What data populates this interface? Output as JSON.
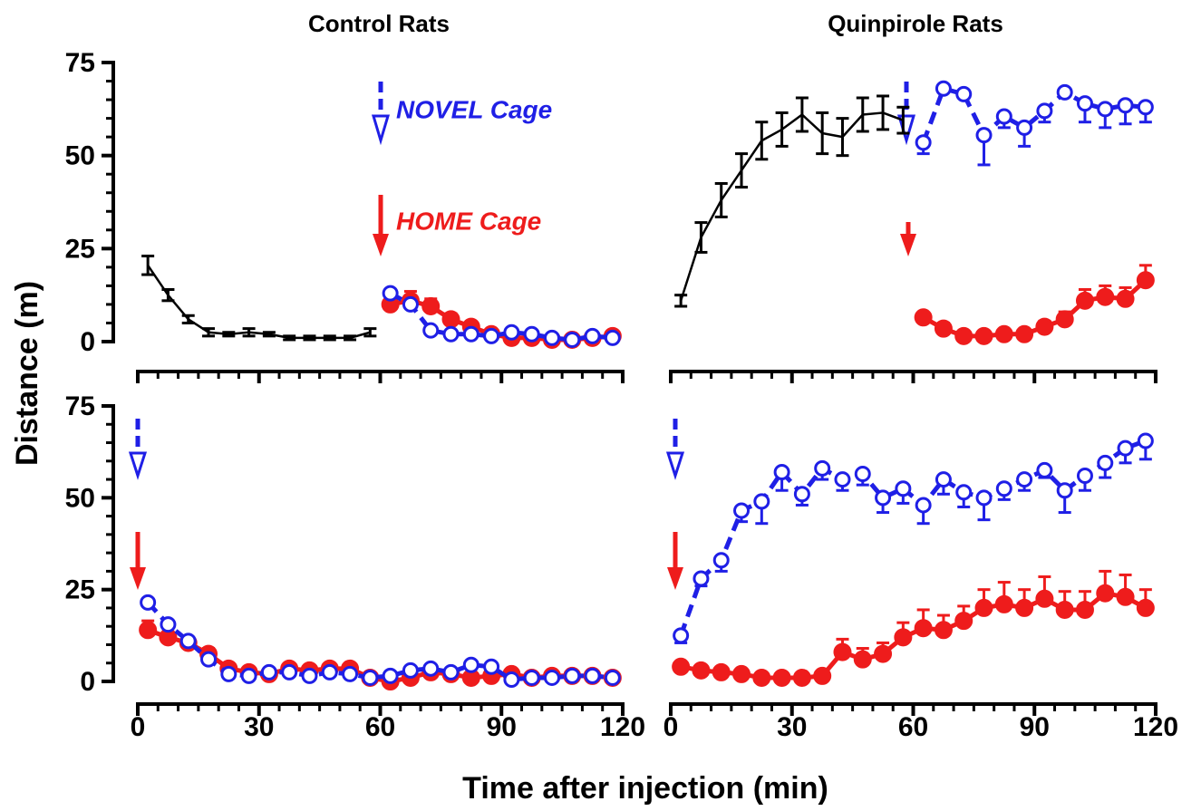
{
  "chart_data": [
    {
      "type": "line",
      "title": "Control Rats",
      "ylabel": "Distance (m)",
      "xlim": [
        0,
        120
      ],
      "xticks": [
        0,
        30,
        60,
        90,
        120
      ],
      "show_xtick_labels": false,
      "ylim": [
        0,
        75
      ],
      "yticks": [
        0,
        25,
        50,
        75
      ],
      "annotations": [
        {
          "text": "NOVEL Cage",
          "color": "#1f1fe6"
        },
        {
          "text": "HOME Cage",
          "color": "#ee1c1c"
        }
      ],
      "series": [
        {
          "color": "#000000",
          "marker": "none",
          "dashed": false,
          "error_bars": "both",
          "x": [
            2.5,
            7.5,
            12.5,
            17.5,
            22.5,
            27.5,
            32.5,
            37.5,
            42.5,
            47.5,
            52.5,
            57.5
          ],
          "values": [
            20.5,
            12.5,
            6,
            2.5,
            2,
            2.5,
            2,
            1,
            1,
            1,
            1,
            2.5
          ],
          "errors": [
            2.5,
            1.5,
            1,
            1,
            0.5,
            1,
            0.5,
            0.5,
            0.5,
            0.5,
            0.5,
            1
          ]
        },
        {
          "color": "#ee1c1c",
          "marker": "filled",
          "dashed": false,
          "error_bars": "up",
          "x": [
            62.5,
            67.5,
            72.5,
            77.5,
            82.5,
            87.5,
            92.5,
            97.5,
            102.5,
            107.5,
            112.5,
            117.5
          ],
          "values": [
            10,
            11,
            9.5,
            6,
            4,
            2,
            1,
            1,
            0.5,
            0.5,
            1,
            1.5
          ],
          "errors": [
            2,
            2.5,
            2,
            1.5,
            1,
            1,
            0.5,
            0.5,
            0.5,
            0.5,
            0.5,
            1
          ]
        },
        {
          "color": "#1f1fe6",
          "marker": "open",
          "dashed": true,
          "error_bars": "up",
          "x": [
            62.5,
            67.5,
            72.5,
            77.5,
            82.5,
            87.5,
            92.5,
            97.5,
            102.5,
            107.5,
            112.5,
            117.5
          ],
          "values": [
            13,
            10,
            3,
            2,
            2,
            1.5,
            2.5,
            2,
            1,
            0.5,
            1.5,
            1
          ],
          "errors": [
            1,
            1,
            0.5,
            0.5,
            0.5,
            0.5,
            0.5,
            0.5,
            0.5,
            0.5,
            0.5,
            0.5
          ]
        }
      ]
    },
    {
      "type": "line",
      "title": "Quinpirole Rats",
      "xlim": [
        0,
        120
      ],
      "xticks": [
        0,
        30,
        60,
        90,
        120
      ],
      "show_xtick_labels": false,
      "ylim": [
        0,
        75
      ],
      "series": [
        {
          "color": "#000000",
          "marker": "none",
          "dashed": false,
          "error_bars": "both",
          "x": [
            2.5,
            7.5,
            12.5,
            17.5,
            22.5,
            27.5,
            32.5,
            37.5,
            42.5,
            47.5,
            52.5,
            57.5
          ],
          "values": [
            11,
            28,
            38,
            46,
            54,
            57,
            61,
            56,
            55,
            61,
            61.5,
            59.5
          ],
          "errors": [
            1.5,
            4,
            4.5,
            4.5,
            5,
            4.5,
            4.5,
            5.5,
            5,
            4.5,
            4.5,
            3.5
          ]
        },
        {
          "color": "#ee1c1c",
          "marker": "filled",
          "dashed": false,
          "error_bars": "up",
          "x": [
            62.5,
            67.5,
            72.5,
            77.5,
            82.5,
            87.5,
            92.5,
            97.5,
            102.5,
            107.5,
            112.5,
            117.5
          ],
          "values": [
            6.5,
            3.5,
            1.5,
            1.5,
            2,
            2,
            4,
            6,
            11,
            12,
            11.5,
            16.5
          ],
          "errors": [
            1,
            1.5,
            1,
            1,
            1,
            1,
            1.5,
            2,
            3,
            3,
            3,
            4
          ]
        },
        {
          "color": "#1f1fe6",
          "marker": "open",
          "dashed": true,
          "error_bars": "down",
          "x": [
            62.5,
            67.5,
            72.5,
            77.5,
            82.5,
            87.5,
            92.5,
            97.5,
            102.5,
            107.5,
            112.5,
            117.5
          ],
          "values": [
            53.5,
            68,
            66.5,
            55.5,
            60.5,
            57.5,
            62,
            67,
            64,
            62.5,
            63.5,
            63
          ],
          "errors": [
            3,
            1,
            1,
            8,
            3,
            5,
            3,
            1,
            5,
            5,
            5,
            4
          ]
        }
      ]
    },
    {
      "type": "line",
      "xlabel": "Time after injection (min)",
      "xlim": [
        0,
        120
      ],
      "xticks": [
        0,
        30,
        60,
        90,
        120
      ],
      "show_xtick_labels": true,
      "ylim": [
        0,
        75
      ],
      "yticks": [
        0,
        25,
        50,
        75
      ],
      "series": [
        {
          "color": "#ee1c1c",
          "marker": "filled",
          "dashed": false,
          "error_bars": "up",
          "x": [
            2.5,
            7.5,
            12.5,
            17.5,
            22.5,
            27.5,
            32.5,
            37.5,
            42.5,
            47.5,
            52.5,
            57.5,
            62.5,
            67.5,
            72.5,
            77.5,
            82.5,
            87.5,
            92.5,
            97.5,
            102.5,
            107.5,
            112.5,
            117.5
          ],
          "values": [
            14,
            12,
            10.5,
            7.5,
            3.5,
            2.5,
            2,
            3.5,
            3,
            3.5,
            3.5,
            1,
            0,
            1,
            2.5,
            2,
            1,
            1.5,
            2,
            1,
            1.5,
            1.5,
            1.5,
            1
          ],
          "errors": [
            2.5,
            1.5,
            1.5,
            1.5,
            1,
            1,
            1,
            1,
            1,
            1,
            1,
            0.5,
            0.5,
            0.5,
            1,
            1,
            0.5,
            0.5,
            0.5,
            0.5,
            0.5,
            0.5,
            0.5,
            0.5
          ]
        },
        {
          "color": "#1f1fe6",
          "marker": "open",
          "dashed": true,
          "error_bars": "up",
          "x": [
            2.5,
            7.5,
            12.5,
            17.5,
            22.5,
            27.5,
            32.5,
            37.5,
            42.5,
            47.5,
            52.5,
            57.5,
            62.5,
            67.5,
            72.5,
            77.5,
            82.5,
            87.5,
            92.5,
            97.5,
            102.5,
            107.5,
            112.5,
            117.5
          ],
          "values": [
            21.5,
            15.5,
            11,
            6,
            2,
            1.5,
            2.5,
            2.5,
            1.5,
            2.5,
            2,
            1,
            1.5,
            3,
            3.5,
            2.5,
            4.5,
            4,
            0.5,
            1,
            1,
            1.5,
            1.5,
            1
          ],
          "errors": [
            1,
            1,
            1,
            1,
            0.5,
            0.5,
            0.5,
            0.5,
            0.5,
            0.5,
            0.5,
            0.5,
            0.5,
            0.5,
            0.5,
            0.5,
            0.5,
            0.5,
            0.5,
            0.5,
            0.5,
            0.5,
            0.5,
            0.5
          ]
        }
      ]
    },
    {
      "type": "line",
      "xlim": [
        0,
        120
      ],
      "xticks": [
        0,
        30,
        60,
        90,
        120
      ],
      "show_xtick_labels": true,
      "ylim": [
        0,
        75
      ],
      "series": [
        {
          "color": "#ee1c1c",
          "marker": "filled",
          "dashed": false,
          "error_bars": "up",
          "x": [
            2.5,
            7.5,
            12.5,
            17.5,
            22.5,
            27.5,
            32.5,
            37.5,
            42.5,
            47.5,
            52.5,
            57.5,
            62.5,
            67.5,
            72.5,
            77.5,
            82.5,
            87.5,
            92.5,
            97.5,
            102.5,
            107.5,
            112.5,
            117.5
          ],
          "values": [
            4,
            3,
            2.5,
            2,
            1,
            1,
            1,
            1.5,
            8,
            6,
            7.5,
            12,
            14.5,
            14,
            16.5,
            20,
            21,
            20,
            22.5,
            19.5,
            19.5,
            24,
            23,
            20
          ],
          "errors": [
            1,
            1,
            1,
            1,
            0.5,
            0.5,
            0.5,
            1,
            3.5,
            3,
            3,
            4,
            5,
            4,
            4,
            5,
            6,
            5,
            6,
            5,
            5,
            6,
            6,
            5
          ]
        },
        {
          "color": "#1f1fe6",
          "marker": "open",
          "dashed": true,
          "error_bars": "down",
          "x": [
            2.5,
            7.5,
            12.5,
            17.5,
            22.5,
            27.5,
            32.5,
            37.5,
            42.5,
            47.5,
            52.5,
            57.5,
            62.5,
            67.5,
            72.5,
            77.5,
            82.5,
            87.5,
            92.5,
            97.5,
            102.5,
            107.5,
            112.5,
            117.5
          ],
          "values": [
            12.5,
            28,
            33,
            46.5,
            49,
            57,
            51,
            58,
            55,
            56.5,
            50,
            52.5,
            48,
            55,
            51.5,
            50,
            52.5,
            55,
            57.5,
            52,
            56,
            59.5,
            63.5,
            65.5
          ],
          "errors": [
            2,
            2,
            3,
            3,
            6,
            5,
            3,
            3,
            3,
            3,
            4,
            4,
            5,
            4,
            4,
            6,
            3,
            3,
            2,
            6,
            4,
            4,
            4,
            5
          ]
        }
      ]
    }
  ]
}
